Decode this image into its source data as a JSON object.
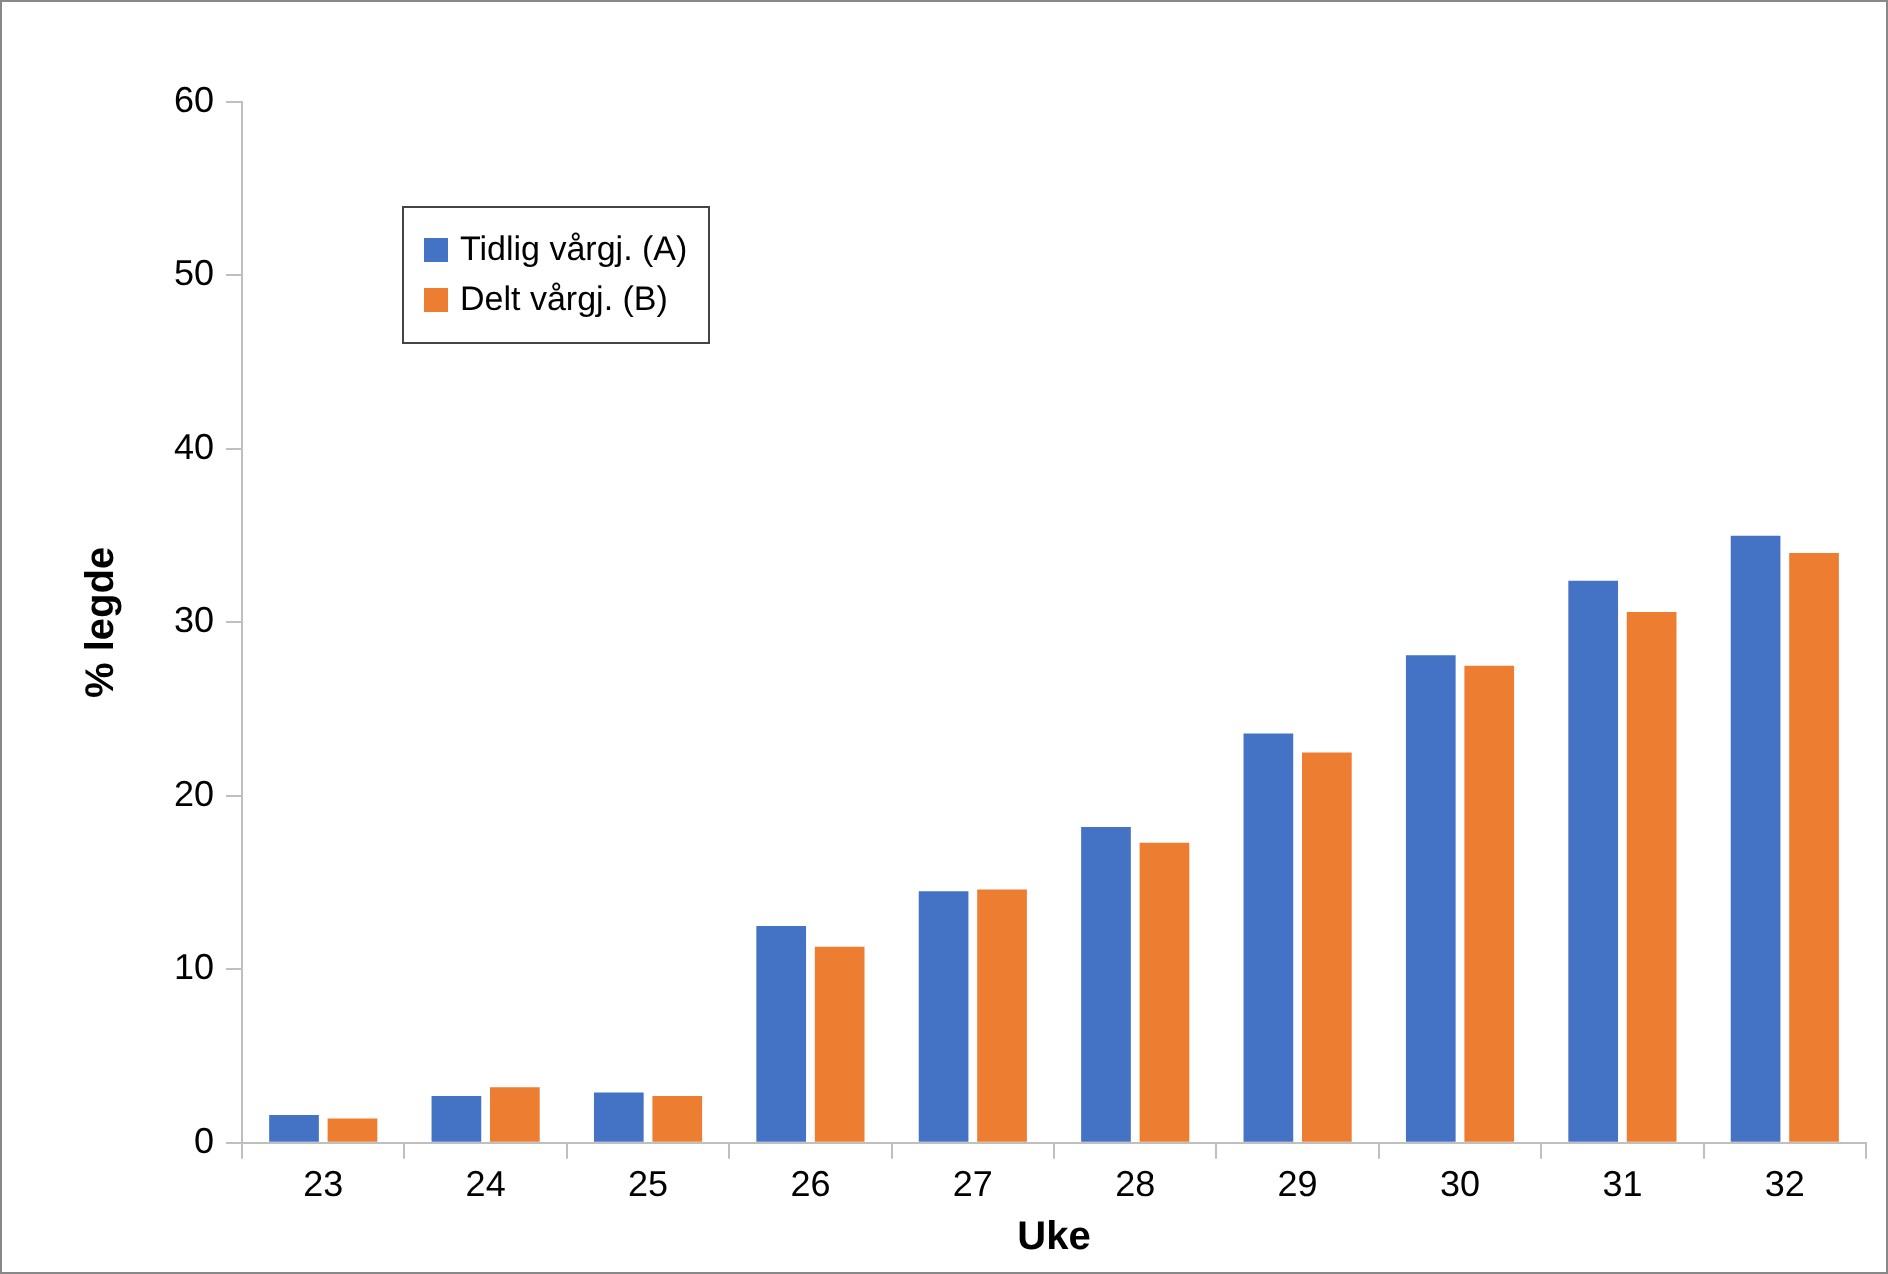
{
  "chart_data": {
    "type": "bar",
    "xlabel": "Uke",
    "ylabel": "% legde",
    "categories": [
      "23",
      "24",
      "25",
      "26",
      "27",
      "28",
      "29",
      "30",
      "31",
      "32"
    ],
    "series": [
      {
        "name": "Tidlig vårgj. (A)",
        "color": "#4472c4",
        "values": [
          1.6,
          2.7,
          2.9,
          12.5,
          14.5,
          18.2,
          23.6,
          28.1,
          32.4,
          35.0
        ]
      },
      {
        "name": "Delt vårgj. (B)",
        "color": "#ed7d31",
        "values": [
          1.4,
          3.2,
          2.7,
          11.3,
          14.6,
          17.3,
          22.5,
          27.5,
          30.6,
          34.0
        ]
      }
    ],
    "ylim": [
      0,
      60
    ],
    "yticks": [
      0,
      10,
      20,
      30,
      40,
      50,
      60
    ],
    "grid": false,
    "legend": "top left"
  }
}
